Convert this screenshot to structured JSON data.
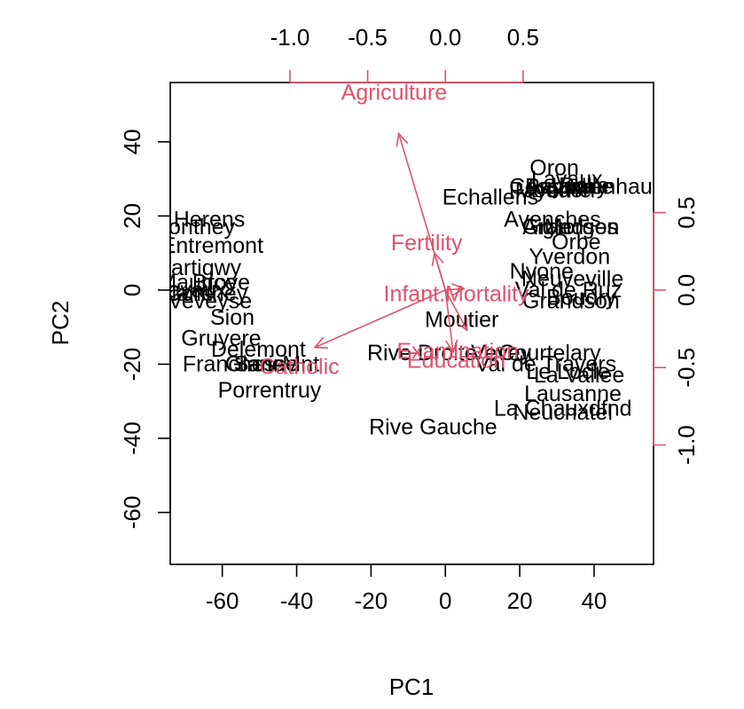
{
  "chart_data": {
    "type": "scatter",
    "subtype": "biplot",
    "xlabel": "PC1",
    "ylabel": "PC2",
    "xlim": [
      -74,
      56
    ],
    "ylim": [
      -74,
      56
    ],
    "xticks": [
      -60,
      -40,
      -20,
      0,
      20,
      40
    ],
    "yticks": [
      -60,
      -40,
      -20,
      0,
      20,
      40
    ],
    "top_ticks": [
      -1.0,
      -0.5,
      0.0,
      0.5
    ],
    "right_ticks": [
      -1.0,
      -0.5,
      0.0,
      0.5
    ],
    "top_tick_labels": [
      "-1.0",
      "-0.5",
      "0.0",
      "0.5"
    ],
    "right_tick_labels": [
      "-1.0",
      "-0.5",
      "0.0",
      "0.5"
    ],
    "loading_scale": 41.8,
    "colors": {
      "points": "#000000",
      "loadings": "#DF536B",
      "axes": "#000000"
    },
    "points": [
      {
        "label": "Oron",
        "x": 29.3,
        "y": 33.1
      },
      {
        "label": "Lavaux",
        "x": 32.7,
        "y": 30.1
      },
      {
        "label": "Cossonay",
        "x": 30.4,
        "y": 28.1
      },
      {
        "label": "Aubonne",
        "x": 33.3,
        "y": 28.1
      },
      {
        "label": "Rolle",
        "x": 37.3,
        "y": 28.4
      },
      {
        "label": "Paysd'enhaut",
        "x": 39.4,
        "y": 28.1
      },
      {
        "label": "Moudon",
        "x": 29.5,
        "y": 27.2
      },
      {
        "label": "Payerne",
        "x": 28.2,
        "y": 27.2
      },
      {
        "label": "Echallens",
        "x": 12.1,
        "y": 25.2
      },
      {
        "label": "Avenches",
        "x": 28.8,
        "y": 19.2
      },
      {
        "label": "Aigle",
        "x": 27.4,
        "y": 17.2
      },
      {
        "label": "Orbe",
        "x": 35.2,
        "y": 13.2
      },
      {
        "label": "Yverdon",
        "x": 33.4,
        "y": 9.2
      },
      {
        "label": "Grandson",
        "x": 33.7,
        "y": 17.2
      },
      {
        "label": "Morges",
        "x": 36.5,
        "y": 17.2
      },
      {
        "label": "Nyone",
        "x": 25.9,
        "y": 5.2
      },
      {
        "label": "Neuveville",
        "x": 34.2,
        "y": 3.2
      },
      {
        "label": "Val de Ruz",
        "x": 33.1,
        "y": 0.2
      },
      {
        "label": "Boudry",
        "x": 36.6,
        "y": -1.8
      },
      {
        "label": "Grandson",
        "x": 33.8,
        "y": -2.8
      },
      {
        "label": "Moutier",
        "x": 4.4,
        "y": -7.8
      },
      {
        "label": "Rive Droite",
        "x": -6.3,
        "y": -16.8
      },
      {
        "label": "Vevey",
        "x": 15.0,
        "y": -16.8
      },
      {
        "label": "Courtelary",
        "x": 28.1,
        "y": -16.8
      },
      {
        "label": "Franches-Mnt",
        "x": -52.3,
        "y": -19.8
      },
      {
        "label": "Val de Travers",
        "x": 27.0,
        "y": -19.8
      },
      {
        "label": "Le Locle",
        "x": 33.0,
        "y": -21.8
      },
      {
        "label": "La Vallee",
        "x": 36.0,
        "y": -22.8
      },
      {
        "label": "Lausanne",
        "x": 34.3,
        "y": -27.8
      },
      {
        "label": "La Chauxdfnd",
        "x": 31.6,
        "y": -31.8
      },
      {
        "label": "Neuchatel",
        "x": 31.6,
        "y": -32.8
      },
      {
        "label": "Rive Gauche",
        "x": -3.3,
        "y": -36.8
      },
      {
        "label": "Porrentruy",
        "x": -47.3,
        "y": -26.8
      },
      {
        "label": "Delemont",
        "x": -50.3,
        "y": -15.8
      },
      {
        "label": "Glane",
        "x": -51.3,
        "y": -19.8
      },
      {
        "label": "Sarine",
        "x": -48.3,
        "y": -19.8
      },
      {
        "label": "Gruyere",
        "x": -60.3,
        "y": -12.8
      },
      {
        "label": "Sion",
        "x": -57.3,
        "y": -7.2
      },
      {
        "label": "Veveyse",
        "x": -63.3,
        "y": -2.8
      },
      {
        "label": "Conthey",
        "x": -64.3,
        "y": -0.8
      },
      {
        "label": "Herens",
        "x": -63.5,
        "y": 19.2
      },
      {
        "label": "Entremont",
        "x": -62.7,
        "y": 12.2
      },
      {
        "label": "Monthey",
        "x": -68.0,
        "y": 17.2
      },
      {
        "label": "Martigwy",
        "x": -66.8,
        "y": 6.2
      },
      {
        "label": "St Maurice",
        "x": -70.3,
        "y": 2.2
      },
      {
        "label": "Broye",
        "x": -60.3,
        "y": 2.2
      },
      {
        "label": "Lavaux",
        "x": -68.3,
        "y": 0.2
      },
      {
        "label": "Glane",
        "x": -70.3,
        "y": -0.8
      }
    ],
    "loadings": [
      {
        "label": "Agriculture",
        "x": -0.3,
        "y": 1.01,
        "lx": -0.33,
        "ly": 1.28
      },
      {
        "label": "Fertility",
        "x": -0.07,
        "y": 0.24,
        "lx": -0.12,
        "ly": 0.31
      },
      {
        "label": "Infant.Mortality",
        "x": 0.12,
        "y": 0.01,
        "lx": 0.07,
        "ly": -0.02
      },
      {
        "label": "Examination",
        "x": 0.14,
        "y": -0.26,
        "lx": 0.08,
        "ly": -0.39
      },
      {
        "label": "Education",
        "x": 0.05,
        "y": -0.4,
        "lx": 0.07,
        "ly": -0.45
      },
      {
        "label": "Catholic",
        "x": -0.84,
        "y": -0.37,
        "lx": -0.94,
        "ly": -0.49
      }
    ]
  }
}
